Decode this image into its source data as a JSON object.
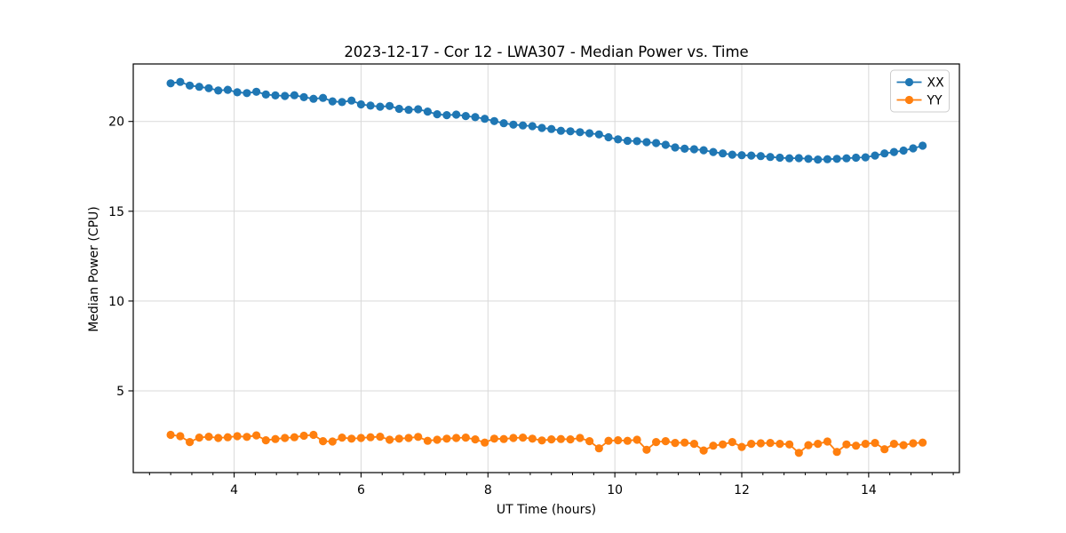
{
  "figure": {
    "background": "#ffffff"
  },
  "chart_data": {
    "type": "line",
    "title": "2023-12-17 - Cor 12 - LWA307 - Median Power vs. Time",
    "xlabel": "UT Time (hours)",
    "ylabel": "Median Power (CPU)",
    "xlim": [
      2.41,
      15.43
    ],
    "ylim": [
      0.45,
      23.2
    ],
    "x_major_ticks": [
      4,
      6,
      8,
      10,
      12,
      14
    ],
    "x_minor_step": 0.3333333,
    "y_major_ticks": [
      5,
      10,
      15,
      20
    ],
    "grid": true,
    "grid_color": "#d9d9d9",
    "legend_position": "upper right",
    "marker": "circle",
    "x": [
      3.0,
      3.15,
      3.3,
      3.45,
      3.6,
      3.75,
      3.9,
      4.05,
      4.2,
      4.35,
      4.5,
      4.65,
      4.8,
      4.95,
      5.1,
      5.25,
      5.4,
      5.55,
      5.7,
      5.85,
      6.0,
      6.15,
      6.3,
      6.45,
      6.6,
      6.75,
      6.9,
      7.05,
      7.2,
      7.35,
      7.5,
      7.65,
      7.8,
      7.95,
      8.1,
      8.25,
      8.4,
      8.55,
      8.7,
      8.85,
      9.0,
      9.15,
      9.3,
      9.45,
      9.6,
      9.75,
      9.9,
      10.05,
      10.2,
      10.35,
      10.5,
      10.65,
      10.8,
      10.95,
      11.1,
      11.25,
      11.4,
      11.55,
      11.7,
      11.85,
      12.0,
      12.15,
      12.3,
      12.45,
      12.6,
      12.75,
      12.9,
      13.05,
      13.2,
      13.35,
      13.5,
      13.65,
      13.8,
      13.95,
      14.1,
      14.25,
      14.4,
      14.55,
      14.7,
      14.85
    ],
    "series": [
      {
        "name": "XX",
        "color": "#1f77b4",
        "values": [
          22.12,
          22.2,
          22.0,
          21.93,
          21.85,
          21.72,
          21.76,
          21.62,
          21.58,
          21.65,
          21.5,
          21.45,
          21.42,
          21.46,
          21.35,
          21.26,
          21.31,
          21.12,
          21.08,
          21.16,
          20.95,
          20.88,
          20.82,
          20.86,
          20.7,
          20.65,
          20.68,
          20.55,
          20.4,
          20.35,
          20.38,
          20.3,
          20.24,
          20.15,
          20.02,
          19.9,
          19.82,
          19.78,
          19.74,
          19.64,
          19.58,
          19.48,
          19.45,
          19.4,
          19.34,
          19.28,
          19.12,
          19.0,
          18.92,
          18.9,
          18.85,
          18.8,
          18.7,
          18.55,
          18.48,
          18.45,
          18.4,
          18.3,
          18.22,
          18.15,
          18.12,
          18.1,
          18.07,
          18.02,
          17.98,
          17.95,
          17.96,
          17.92,
          17.88,
          17.9,
          17.92,
          17.95,
          17.98,
          18.0,
          18.1,
          18.22,
          18.3,
          18.38,
          18.5,
          18.65
        ]
      },
      {
        "name": "YY",
        "color": "#ff7f0e",
        "values": [
          2.55,
          2.48,
          2.15,
          2.4,
          2.45,
          2.38,
          2.42,
          2.48,
          2.44,
          2.52,
          2.25,
          2.32,
          2.38,
          2.42,
          2.5,
          2.55,
          2.2,
          2.18,
          2.4,
          2.34,
          2.38,
          2.42,
          2.45,
          2.28,
          2.34,
          2.38,
          2.44,
          2.22,
          2.28,
          2.34,
          2.38,
          2.4,
          2.3,
          2.12,
          2.34,
          2.32,
          2.38,
          2.4,
          2.34,
          2.24,
          2.3,
          2.32,
          2.3,
          2.38,
          2.2,
          1.8,
          2.22,
          2.25,
          2.22,
          2.28,
          1.72,
          2.15,
          2.2,
          2.1,
          2.12,
          2.05,
          1.68,
          1.95,
          2.02,
          2.15,
          1.88,
          2.05,
          2.08,
          2.1,
          2.05,
          2.02,
          1.55,
          1.98,
          2.05,
          2.18,
          1.6,
          2.02,
          1.95,
          2.05,
          2.1,
          1.75,
          2.05,
          1.98,
          2.08,
          2.12
        ]
      }
    ]
  }
}
